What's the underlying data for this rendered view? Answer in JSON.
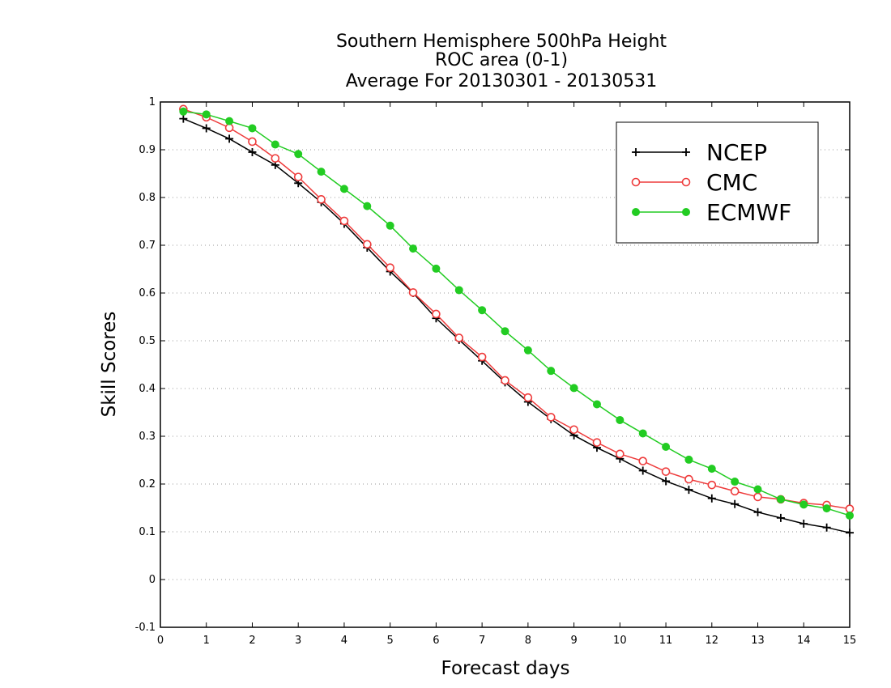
{
  "chart_data": {
    "type": "line",
    "title_lines": [
      "Southern Hemisphere 500hPa Height",
      "ROC area (0-1)",
      "Average For 20130301 - 20130531"
    ],
    "xlabel": "Forecast days",
    "ylabel": "Skill Scores",
    "xlim": [
      0,
      15
    ],
    "ylim": [
      -0.1,
      1
    ],
    "x_ticks": [
      0,
      1,
      2,
      3,
      4,
      5,
      6,
      7,
      8,
      9,
      10,
      11,
      12,
      13,
      14,
      15
    ],
    "y_ticks": [
      -0.1,
      0,
      0.1,
      0.2,
      0.3,
      0.4,
      0.5,
      0.6,
      0.7,
      0.8,
      0.9,
      1
    ],
    "x_tick_labels": [
      "0",
      "1",
      "2",
      "3",
      "4",
      "5",
      "6",
      "7",
      "8",
      "9",
      "10",
      "11",
      "12",
      "13",
      "14",
      "15"
    ],
    "y_tick_labels": [
      "-0.1",
      "0",
      "0.1",
      "0.2",
      "0.3",
      "0.4",
      "0.5",
      "0.6",
      "0.7",
      "0.8",
      "0.9",
      "1"
    ],
    "grid": "horizontal dotted",
    "legend_position": "top-right",
    "x": [
      0.5,
      1,
      1.5,
      2,
      2.5,
      3,
      3.5,
      4,
      4.5,
      5,
      5.5,
      6,
      6.5,
      7,
      7.5,
      8,
      8.5,
      9,
      9.5,
      10,
      10.5,
      11,
      11.5,
      12,
      12.5,
      13,
      13.5,
      14,
      14.5,
      15
    ],
    "series": [
      {
        "name": "NCEP",
        "color": "#000000",
        "marker": "plus",
        "values": [
          0.965,
          0.945,
          0.923,
          0.895,
          0.868,
          0.83,
          0.79,
          0.745,
          0.695,
          0.645,
          0.6,
          0.547,
          0.502,
          0.458,
          0.413,
          0.372,
          0.336,
          0.302,
          0.276,
          0.253,
          0.228,
          0.206,
          0.188,
          0.17,
          0.158,
          0.141,
          0.129,
          0.117,
          0.109,
          0.098
        ]
      },
      {
        "name": "CMC",
        "color": "#ee3b3b",
        "marker": "open-circle",
        "values": [
          0.985,
          0.968,
          0.946,
          0.917,
          0.882,
          0.843,
          0.796,
          0.751,
          0.702,
          0.653,
          0.601,
          0.556,
          0.506,
          0.466,
          0.417,
          0.381,
          0.34,
          0.314,
          0.287,
          0.263,
          0.248,
          0.226,
          0.21,
          0.198,
          0.185,
          0.173,
          0.168,
          0.16,
          0.156,
          0.148
        ]
      },
      {
        "name": "ECMWF",
        "color": "#22cc22",
        "marker": "filled-circle",
        "values": [
          0.98,
          0.974,
          0.96,
          0.945,
          0.911,
          0.891,
          0.854,
          0.818,
          0.782,
          0.741,
          0.693,
          0.651,
          0.606,
          0.564,
          0.52,
          0.48,
          0.437,
          0.401,
          0.367,
          0.334,
          0.306,
          0.278,
          0.251,
          0.232,
          0.205,
          0.189,
          0.168,
          0.157,
          0.149,
          0.134
        ]
      }
    ]
  }
}
